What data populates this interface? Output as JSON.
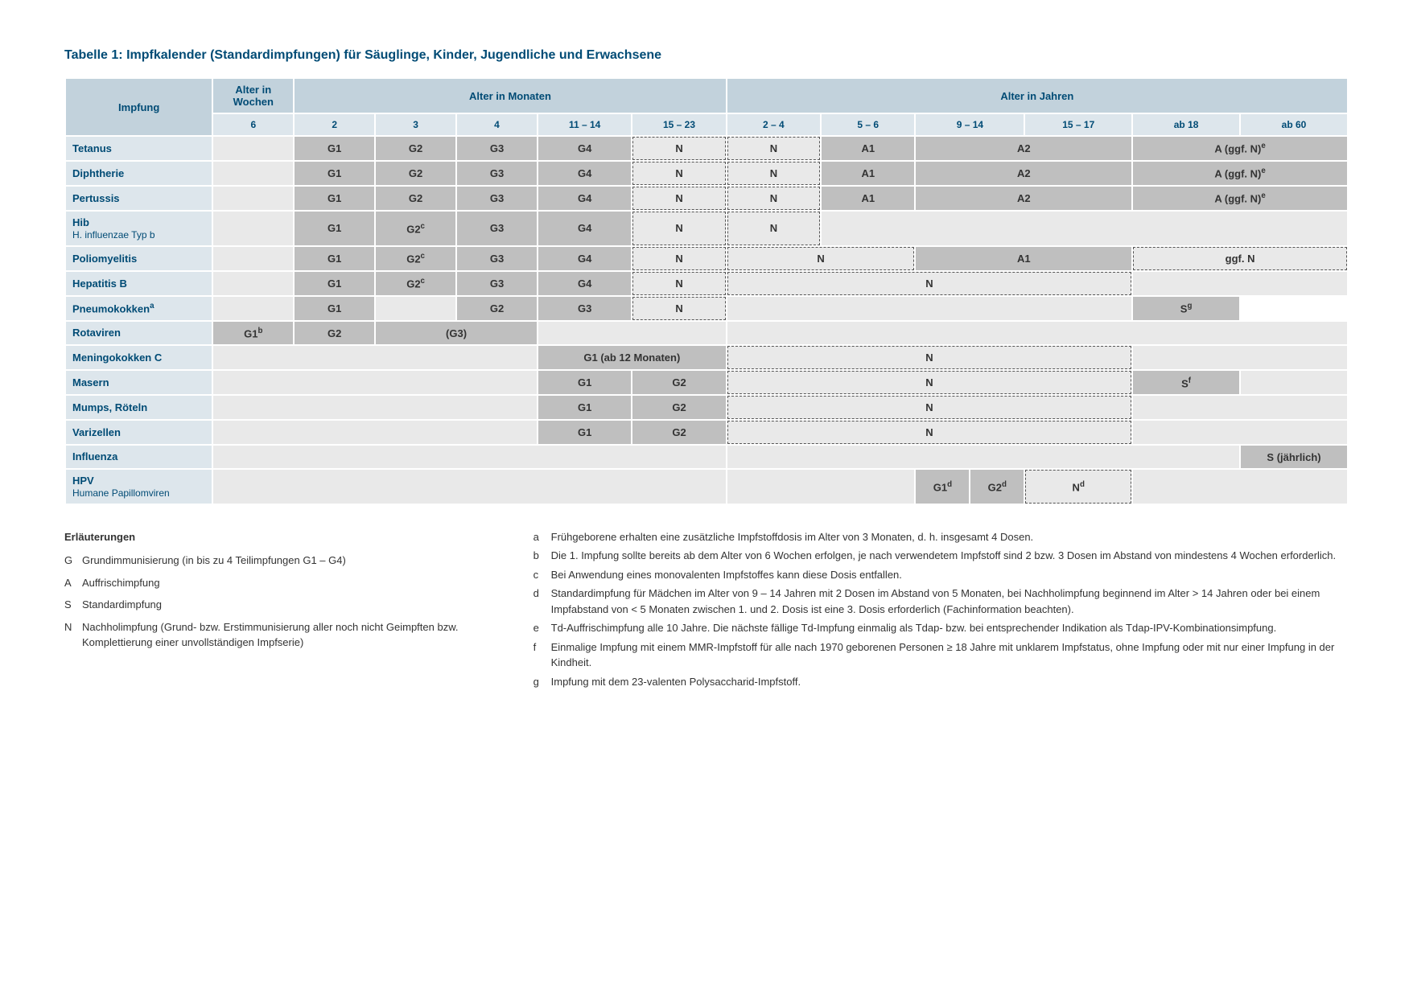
{
  "title": "Tabelle 1: Impfkalender (Standardimpfungen) für Säuglinge, Kinder, Jugendliche und Erwachsene",
  "headers": {
    "col_vaccine": "Impfung",
    "group_weeks": "Alter in Wochen",
    "group_months": "Alter in Monaten",
    "group_years": "Alter in Jahren",
    "weeks": [
      "6"
    ],
    "months": [
      "2",
      "3",
      "4",
      "11 – 14",
      "15 – 23"
    ],
    "years": [
      "2 – 4",
      "5 – 6",
      "9 – 14",
      "15 – 17",
      "ab 18",
      "ab 60"
    ]
  },
  "rows": {
    "tetanus": {
      "label": "Tetanus",
      "cells": {
        "m2": "G1",
        "m3": "G2",
        "m4": "G3",
        "m11": "G4",
        "m15": "N",
        "y2": "N",
        "y5": "A1",
        "y9": "A2",
        "y18": "A (ggf. N)",
        "y18sup": "e"
      }
    },
    "diphtherie": {
      "label": "Diphtherie",
      "cells": {
        "m2": "G1",
        "m3": "G2",
        "m4": "G3",
        "m11": "G4",
        "m15": "N",
        "y2": "N",
        "y5": "A1",
        "y9": "A2",
        "y18": "A (ggf. N)",
        "y18sup": "e"
      }
    },
    "pertussis": {
      "label": "Pertussis",
      "cells": {
        "m2": "G1",
        "m3": "G2",
        "m4": "G3",
        "m11": "G4",
        "m15": "N",
        "y2": "N",
        "y5": "A1",
        "y9": "A2",
        "y18": "A (ggf. N)",
        "y18sup": "e"
      }
    },
    "hib": {
      "label": "Hib",
      "sub": "H. influenzae Typ b",
      "cells": {
        "m2": "G1",
        "m3": "G2",
        "m3sup": "c",
        "m4": "G3",
        "m11": "G4",
        "m15": "N",
        "y2": "N"
      }
    },
    "polio": {
      "label": "Poliomyelitis",
      "cells": {
        "m2": "G1",
        "m3": "G2",
        "m3sup": "c",
        "m4": "G3",
        "m11": "G4",
        "m15": "N",
        "y2": "N",
        "y9": "A1",
        "y18": "ggf. N"
      }
    },
    "hepb": {
      "label": "Hepatitis B",
      "cells": {
        "m2": "G1",
        "m3": "G2",
        "m3sup": "c",
        "m4": "G3",
        "m11": "G4",
        "m15": "N",
        "y2": "N"
      }
    },
    "pneumo": {
      "label": "Pneumokokken",
      "labelsup": "a",
      "cells": {
        "m2": "G1",
        "m4": "G2",
        "m11": "G3",
        "m15": "N",
        "y60": "S",
        "y60sup": "g"
      }
    },
    "rota": {
      "label": "Rotaviren",
      "cells": {
        "w6": "G1",
        "w6sup": "b",
        "m2": "G2",
        "m3": "(G3)"
      }
    },
    "meningo": {
      "label": "Meningokokken C",
      "cells": {
        "m11": "G1 (ab 12 Monaten)",
        "y2": "N"
      }
    },
    "masern": {
      "label": "Masern",
      "cells": {
        "m11": "G1",
        "m15": "G2",
        "y2": "N",
        "y18": "S",
        "y18sup": "f"
      }
    },
    "mumps": {
      "label": "Mumps, Röteln",
      "cells": {
        "m11": "G1",
        "m15": "G2",
        "y2": "N"
      }
    },
    "varizellen": {
      "label": "Varizellen",
      "cells": {
        "m11": "G1",
        "m15": "G2",
        "y2": "N"
      }
    },
    "influenza": {
      "label": "Influenza",
      "cells": {
        "y60": "S (jährlich)"
      }
    },
    "hpv": {
      "label": "HPV",
      "sub": "Humane Papillomviren",
      "cells": {
        "y9a": "G1",
        "y9asup": "d",
        "y9b": "G2",
        "y9bsup": "d",
        "y15": "N",
        "y15sup": "d"
      }
    }
  },
  "legend": {
    "title": "Erläuterungen",
    "items": [
      {
        "k": "G",
        "v": "Grundimmunisierung (in bis zu 4 Teilimpfungen G1 – G4)"
      },
      {
        "k": "A",
        "v": "Auffrischimpfung"
      },
      {
        "k": "S",
        "v": "Standardimpfung"
      },
      {
        "k": "N",
        "v": "Nachholimpfung (Grund- bzw. Erstimmunisierung aller noch nicht Geimpften bzw. Komplettierung einer unvollständigen Impfserie)"
      }
    ]
  },
  "notes": [
    {
      "k": "a",
      "v": "Frühgeborene erhalten eine zusätzliche Impfstoffdosis im Alter von 3 Monaten, d. h. insgesamt 4 Dosen."
    },
    {
      "k": "b",
      "v": "Die 1. Impfung sollte bereits ab dem Alter von 6 Wochen erfolgen, je nach verwendetem Impfstoff sind 2 bzw. 3 Dosen im Abstand von mindestens 4 Wochen erforderlich."
    },
    {
      "k": "c",
      "v": "Bei Anwendung eines monovalenten Impfstoffes kann diese Dosis entfallen."
    },
    {
      "k": "d",
      "v": "Standardimpfung für Mädchen im Alter von 9 – 14 Jahren mit 2 Dosen im Abstand von 5 Monaten, bei Nachholimpfung beginnend im Alter > 14 Jahren oder bei einem Impfabstand von < 5 Monaten zwischen 1. und 2. Dosis ist eine 3. Dosis erforderlich (Fachinformation beachten)."
    },
    {
      "k": "e",
      "v": "Td-Auffrischimpfung alle 10 Jahre. Die nächste fällige Td-Impfung einmalig als Tdap- bzw. bei entsprechender Indikation als Tdap-IPV-Kombinationsimpfung."
    },
    {
      "k": "f",
      "v": "Einmalige Impfung mit einem MMR-Impfstoff für alle nach 1970 geborenen Personen ≥ 18 Jahre mit unklarem Impfstatus, ohne Impfung oder mit nur einer Impfung in der Kindheit."
    },
    {
      "k": "g",
      "v": "Impfung mit dem 23-valenten Polysaccharid-Impfstoff."
    }
  ],
  "style": {
    "color_header_main": "#c2d2dc",
    "color_header_sub": "#dde6ec",
    "color_rowlabel": "#dde6ec",
    "color_darkcell": "#bfbfbf",
    "color_lightcell": "#e9e9e9",
    "color_text_brand": "#004b75",
    "border_dashed": "1.5px dashed #555"
  }
}
